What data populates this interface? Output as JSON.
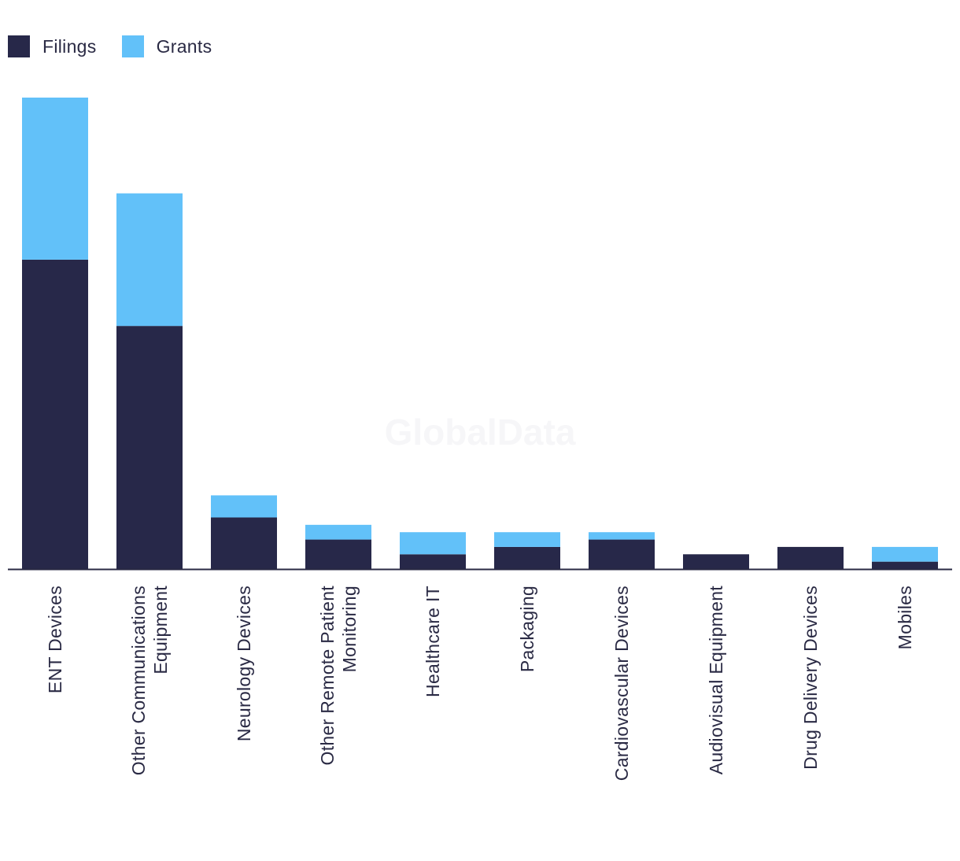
{
  "chart_data": {
    "type": "bar",
    "stacked": true,
    "title": "",
    "xlabel": "",
    "ylabel": "",
    "ylim": [
      0,
      32
    ],
    "grid": false,
    "legend_position": "top-left",
    "categories": [
      [
        "ENT Devices"
      ],
      [
        "Other Communications",
        "Equipment"
      ],
      [
        "Neurology Devices"
      ],
      [
        "Other Remote Patient",
        "Monitoring"
      ],
      [
        "Healthcare IT"
      ],
      [
        "Packaging"
      ],
      [
        "Cardiovascular Devices"
      ],
      [
        "Audiovisual Equipment"
      ],
      [
        "Drug Delivery Devices"
      ],
      [
        "Mobiles"
      ]
    ],
    "series": [
      {
        "name": "Filings",
        "color": "#272849",
        "values": [
          21,
          16.5,
          3.5,
          2,
          1,
          1.5,
          2,
          1,
          1.5,
          0.5
        ]
      },
      {
        "name": "Grants",
        "color": "#62c1f9",
        "values": [
          11,
          9,
          1.5,
          1,
          1.5,
          1,
          0.5,
          0,
          0,
          1
        ]
      }
    ]
  },
  "legend": {
    "filings_label": "Filings",
    "grants_label": "Grants",
    "filings_color": "#272849",
    "grants_color": "#62c1f9"
  },
  "watermark": "GlobalData"
}
